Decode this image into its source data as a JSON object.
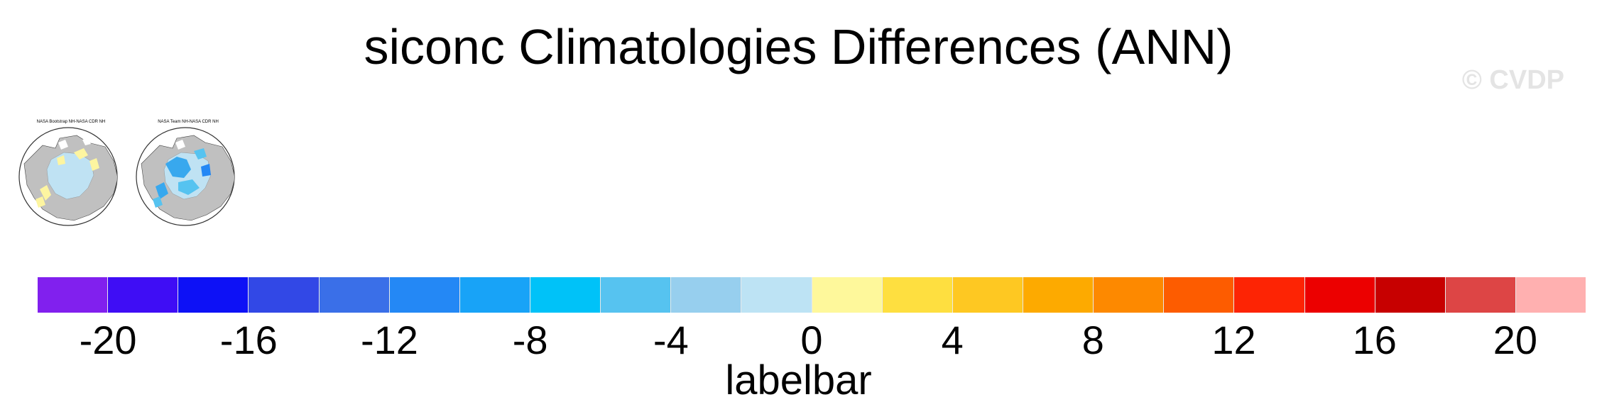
{
  "figure": {
    "title": "siconc Climatologies Differences (ANN)",
    "watermark": "© CVDP"
  },
  "panels": [
    {
      "title": "NASA Bootstrap NH-NASA CDR NH",
      "difference_sign": "positive",
      "fill_color": "#fdf5a0",
      "inner_color": "#bfe2f3"
    },
    {
      "title": "NASA Team NH-NASA CDR NH",
      "difference_sign": "negative",
      "fill_color": "#38a8ee",
      "inner_color": "#bfe2f3"
    }
  ],
  "colorbar": {
    "title": "labelbar",
    "min": -22,
    "max": 22,
    "interval": 2,
    "tick_labels": [
      "-20",
      "-16",
      "-12",
      "-8",
      "-4",
      "0",
      "4",
      "8",
      "12",
      "16",
      "20"
    ],
    "colors": [
      "#8120ee",
      "#3f0df5",
      "#0d11f6",
      "#3248e6",
      "#3a6fe8",
      "#2488f5",
      "#18a3f7",
      "#00c2f8",
      "#56c3f0",
      "#97cfee",
      "#bde3f4",
      "#fef89b",
      "#fedf40",
      "#fec822",
      "#fdaa00",
      "#fd8900",
      "#fd5c00",
      "#fd2404",
      "#ec0000",
      "#c70000",
      "#dd4545",
      "#ffb0b0"
    ]
  }
}
